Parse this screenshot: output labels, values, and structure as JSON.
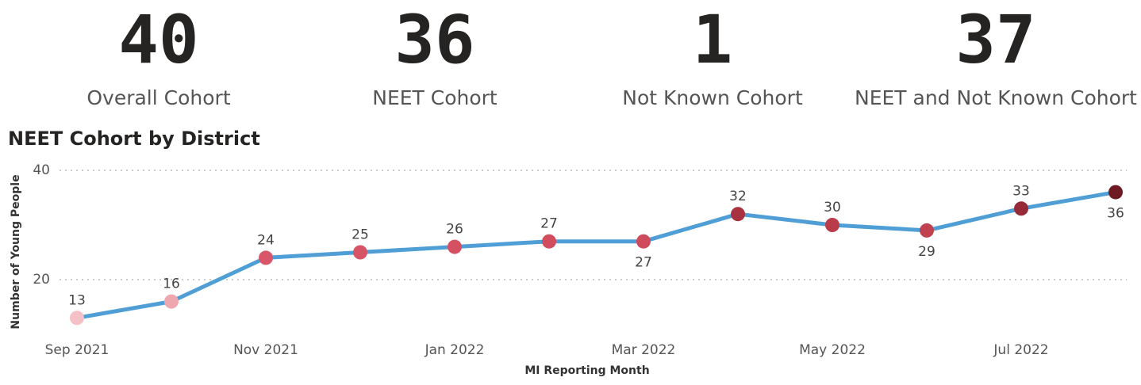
{
  "kpis": [
    {
      "value": "40",
      "label": "Overall Cohort"
    },
    {
      "value": "36",
      "label": "NEET Cohort"
    },
    {
      "value": "1",
      "label": "Not Known Cohort"
    },
    {
      "value": "37",
      "label": "NEET and Not Known Cohort"
    }
  ],
  "chart_data": {
    "type": "line",
    "title": "NEET Cohort by District",
    "x_label": "MI Reporting Month",
    "y_label": "Number of Young People",
    "categories": [
      "Sep 2021",
      null,
      "Nov 2021",
      null,
      "Jan 2022",
      null,
      "Mar 2022",
      null,
      "May 2022",
      null,
      "Jul 2022",
      null
    ],
    "values": [
      13,
      16,
      24,
      25,
      26,
      27,
      27,
      32,
      30,
      29,
      33,
      36
    ],
    "color": "#4f9fd6",
    "point_colors": [
      "#f4c2c6",
      "#eea7ae",
      "#d9566a",
      "#d65466",
      "#d45062",
      "#d14c5e",
      "#cf4a5c",
      "#a8323f",
      "#b83c4a",
      "#c0414f",
      "#962b37",
      "#6e1a22"
    ],
    "ylim": [
      10,
      40
    ],
    "yticks": [
      20,
      40
    ],
    "grid": true
  }
}
